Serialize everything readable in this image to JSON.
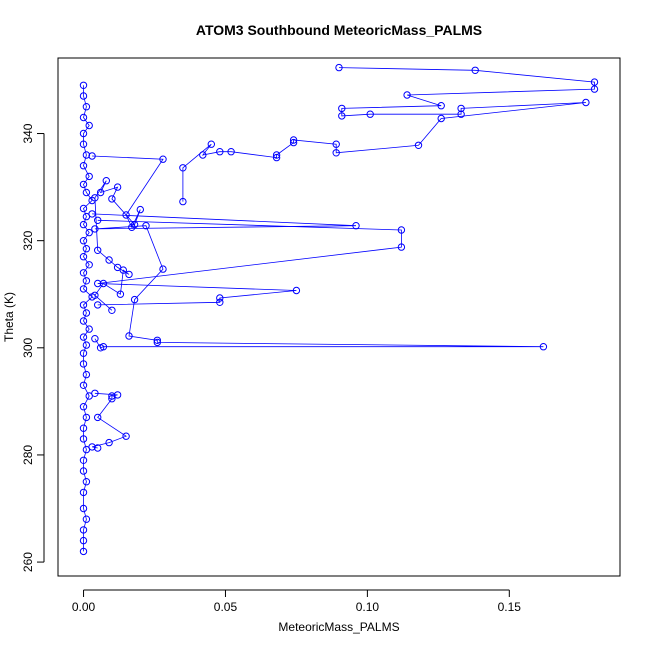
{
  "chart_data": {
    "type": "scatter",
    "title": "ATOM3 Southbound MeteoricMass_PALMS",
    "xlabel": "MeteoricMass_PALMS",
    "ylabel": "Theta (K)",
    "xlim": [
      -0.009,
      0.189
    ],
    "ylim": [
      257.4,
      354.1
    ],
    "x_ticks": [
      0.0,
      0.05,
      0.1,
      0.15
    ],
    "x_tick_labels": [
      "0.00",
      "0.05",
      "0.10",
      "0.15"
    ],
    "y_ticks": [
      260,
      280,
      300,
      320,
      340
    ],
    "y_tick_labels": [
      "260",
      "280",
      "300",
      "320",
      "340"
    ],
    "grid": false,
    "legend": "none",
    "color": "#0000ff",
    "marker": "open-circle",
    "series": [
      {
        "values": [
          [
            0.0,
            349.0
          ],
          [
            0.0,
            347.0
          ],
          [
            0.001,
            345.0
          ],
          [
            0.0,
            343.0
          ],
          [
            0.002,
            341.5
          ],
          [
            0.0,
            340.0
          ],
          [
            0.0,
            338.0
          ],
          [
            0.001,
            336.0
          ],
          [
            0.0,
            334.0
          ],
          [
            0.002,
            332.0
          ],
          [
            0.0,
            330.5
          ],
          [
            0.001,
            329.0
          ],
          [
            0.003,
            327.5
          ],
          [
            0.0,
            326.0
          ],
          [
            0.001,
            324.5
          ],
          [
            0.0,
            323.0
          ],
          [
            0.002,
            321.5
          ],
          [
            0.0,
            320.0
          ],
          [
            0.001,
            318.5
          ],
          [
            0.0,
            317.0
          ],
          [
            0.002,
            315.5
          ],
          [
            0.0,
            314.0
          ],
          [
            0.001,
            312.5
          ],
          [
            0.0,
            311.0
          ],
          [
            0.003,
            309.5
          ],
          [
            0.0,
            308.0
          ],
          [
            0.001,
            306.5
          ],
          [
            0.0,
            305.0
          ],
          [
            0.002,
            303.5
          ],
          [
            0.0,
            302.0
          ],
          [
            0.001,
            300.5
          ],
          [
            0.0,
            299.0
          ],
          [
            0.0,
            297.0
          ],
          [
            0.001,
            295.0
          ],
          [
            0.0,
            293.0
          ],
          [
            0.002,
            291.0
          ],
          [
            0.0,
            289.0
          ],
          [
            0.001,
            287.0
          ],
          [
            0.0,
            285.0
          ],
          [
            0.0,
            283.0
          ],
          [
            0.001,
            281.0
          ],
          [
            0.0,
            279.0
          ],
          [
            0.0,
            277.0
          ],
          [
            0.001,
            275.0
          ],
          [
            0.0,
            273.0
          ],
          [
            0.0,
            270.0
          ],
          [
            0.001,
            268.0
          ],
          [
            0.0,
            266.0
          ],
          [
            0.0,
            264.0
          ],
          [
            0.0,
            262.0
          ]
        ]
      },
      {
        "values": [
          [
            0.09,
            352.3
          ],
          [
            0.138,
            351.8
          ],
          [
            0.18,
            349.6
          ],
          [
            0.18,
            348.3
          ],
          [
            0.114,
            347.2
          ],
          [
            0.126,
            345.2
          ],
          [
            0.091,
            344.7
          ],
          [
            0.091,
            343.3
          ],
          [
            0.101,
            343.6
          ],
          [
            0.133,
            343.6
          ],
          [
            0.133,
            344.7
          ],
          [
            0.177,
            345.8
          ],
          [
            0.126,
            342.8
          ],
          [
            0.118,
            337.8
          ],
          [
            0.089,
            336.4
          ],
          [
            0.089,
            338.0
          ],
          [
            0.074,
            338.8
          ],
          [
            0.074,
            338.3
          ],
          [
            0.068,
            336.0
          ],
          [
            0.068,
            335.5
          ],
          [
            0.052,
            336.6
          ],
          [
            0.048,
            336.6
          ],
          [
            0.042,
            336.0
          ],
          [
            0.045,
            338.0
          ],
          [
            0.035,
            333.6
          ],
          [
            0.035,
            327.3
          ]
        ]
      },
      {
        "values": [
          [
            0.005,
            323.8
          ],
          [
            0.112,
            322.0
          ],
          [
            0.112,
            318.8
          ],
          [
            0.005,
            312.0
          ],
          [
            0.075,
            310.7
          ],
          [
            0.048,
            309.3
          ],
          [
            0.048,
            308.5
          ],
          [
            0.005,
            308.0
          ]
        ]
      },
      {
        "values": [
          [
            0.003,
            325.0
          ],
          [
            0.096,
            322.8
          ],
          [
            0.004,
            322.2
          ],
          [
            0.022,
            322.8
          ],
          [
            0.028,
            314.7
          ],
          [
            0.018,
            309.0
          ],
          [
            0.016,
            302.2
          ],
          [
            0.026,
            301.4
          ],
          [
            0.026,
            301.0
          ],
          [
            0.162,
            300.2
          ],
          [
            0.007,
            300.2
          ],
          [
            0.006,
            300.0
          ],
          [
            0.004,
            301.7
          ]
        ]
      },
      {
        "values": [
          [
            0.004,
            291.5
          ],
          [
            0.012,
            291.2
          ],
          [
            0.01,
            291.0
          ],
          [
            0.01,
            290.5
          ],
          [
            0.005,
            287.0
          ],
          [
            0.015,
            283.5
          ],
          [
            0.009,
            282.3
          ],
          [
            0.003,
            281.5
          ],
          [
            0.005,
            281.3
          ]
        ]
      },
      {
        "values": [
          [
            0.003,
            335.8
          ],
          [
            0.028,
            335.2
          ],
          [
            0.015,
            324.8
          ],
          [
            0.017,
            322.5
          ],
          [
            0.02,
            325.8
          ],
          [
            0.018,
            323.0
          ],
          [
            0.01,
            327.8
          ],
          [
            0.012,
            330.0
          ],
          [
            0.006,
            329.0
          ],
          [
            0.008,
            331.2
          ],
          [
            0.004,
            328.0
          ],
          [
            0.005,
            318.2
          ],
          [
            0.009,
            316.4
          ],
          [
            0.012,
            315.0
          ],
          [
            0.016,
            313.7
          ],
          [
            0.014,
            314.5
          ],
          [
            0.013,
            310.0
          ],
          [
            0.007,
            312.0
          ],
          [
            0.004,
            309.8
          ],
          [
            0.01,
            307.0
          ]
        ]
      }
    ]
  }
}
